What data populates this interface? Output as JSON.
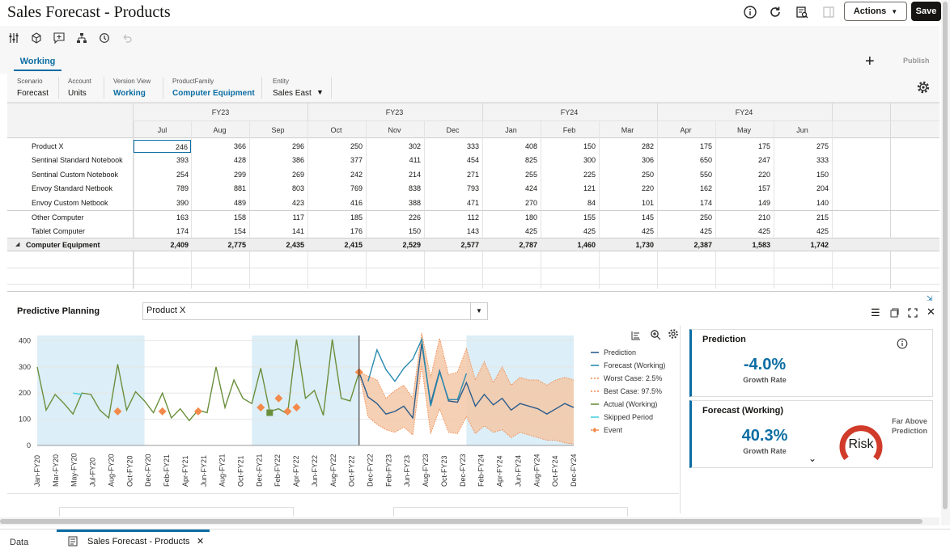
{
  "header": {
    "title": "Sales Forecast - Products",
    "actions_label": "Actions",
    "save_label": "Save"
  },
  "tabs": {
    "working": "Working",
    "publish": "Publish"
  },
  "pov": [
    {
      "label": "Scenario",
      "value": "Forecast"
    },
    {
      "label": "Account",
      "value": "Units"
    },
    {
      "label": "Version View",
      "value": "Working"
    },
    {
      "label": "ProductFamily",
      "value": "Computer Equipment"
    },
    {
      "label": "Entity",
      "value": "Sales East"
    }
  ],
  "grid": {
    "years": [
      "FY23",
      "FY23",
      "FY24",
      "FY24"
    ],
    "months": [
      "Jul",
      "Aug",
      "Sep",
      "Oct",
      "Nov",
      "Dec",
      "Jan",
      "Feb",
      "Mar",
      "Apr",
      "May",
      "Jun"
    ],
    "rows": [
      {
        "label": "Product X",
        "values": [
          "246",
          "366",
          "296",
          "250",
          "302",
          "333",
          "408",
          "150",
          "282",
          "175",
          "175",
          "275"
        ]
      },
      {
        "label": "Sentinal Standard Notebook",
        "values": [
          "393",
          "428",
          "386",
          "377",
          "411",
          "454",
          "825",
          "300",
          "306",
          "650",
          "247",
          "333"
        ]
      },
      {
        "label": "Sentinal Custom Notebook",
        "values": [
          "254",
          "299",
          "269",
          "242",
          "214",
          "271",
          "255",
          "225",
          "250",
          "550",
          "220",
          "150"
        ]
      },
      {
        "label": "Envoy Standard Netbook",
        "values": [
          "789",
          "881",
          "803",
          "769",
          "838",
          "793",
          "424",
          "121",
          "220",
          "162",
          "157",
          "204"
        ]
      },
      {
        "label": "Envoy Custom Netbook",
        "values": [
          "390",
          "489",
          "423",
          "416",
          "388",
          "471",
          "270",
          "84",
          "101",
          "174",
          "149",
          "140"
        ]
      },
      {
        "label": "Other Computer",
        "values": [
          "163",
          "158",
          "117",
          "185",
          "226",
          "112",
          "180",
          "155",
          "145",
          "250",
          "210",
          "215"
        ]
      },
      {
        "label": "Tablet Computer",
        "values": [
          "174",
          "154",
          "141",
          "176",
          "150",
          "143",
          "425",
          "425",
          "425",
          "425",
          "425",
          "425"
        ]
      }
    ],
    "total": {
      "label": "Computer Equipment",
      "values": [
        "2,409",
        "2,775",
        "2,435",
        "2,415",
        "2,529",
        "2,577",
        "2,787",
        "1,460",
        "1,730",
        "2,387",
        "1,583",
        "1,742"
      ]
    }
  },
  "predictive": {
    "title": "Predictive Planning",
    "selected_member": "Product X"
  },
  "chart_data": {
    "type": "line",
    "ylim": [
      0,
      420
    ],
    "yticks": [
      0,
      100,
      200,
      300,
      400
    ],
    "x_labels": [
      "Jan-FY20",
      "Mar-FY20",
      "May-FY20",
      "Jul-FY20",
      "Aug-FY20",
      "Oct-FY20",
      "Dec-FY20",
      "Feb-FY21",
      "Apr-FY21",
      "Jun-FY21",
      "Aug-FY21",
      "Oct-FY21",
      "Dec-FY21",
      "Feb-FY22",
      "Apr-FY22",
      "Jun-FY22",
      "Aug-FY22",
      "Oct-FY22",
      "Dec-FY22",
      "Feb-FY23",
      "Jun-FY23",
      "Aug-FY23",
      "Oct-FY23",
      "Dec-FY23",
      "Feb-FY24",
      "Apr-FY24",
      "Jun-FY24",
      "Aug-FY24",
      "Oct-FY24",
      "Dec-FY24"
    ],
    "actual": [
      300,
      135,
      195,
      160,
      120,
      200,
      195,
      135,
      105,
      310,
      135,
      205,
      170,
      125,
      200,
      105,
      140,
      95,
      135,
      125,
      300,
      145,
      250,
      180,
      160,
      295,
      130,
      140,
      120,
      405,
      180,
      210,
      115,
      405,
      180,
      170,
      280
    ],
    "prediction": [
      null,
      null,
      null,
      null,
      null,
      null,
      null,
      null,
      null,
      null,
      null,
      null,
      null,
      null,
      null,
      null,
      null,
      null,
      null,
      null,
      null,
      null,
      null,
      null,
      null,
      null,
      null,
      null,
      null,
      null,
      null,
      null,
      null,
      null,
      null,
      null,
      280,
      185,
      160,
      120,
      130,
      150,
      105,
      390,
      160,
      285,
      170,
      165,
      240,
      150,
      195,
      155,
      180,
      135,
      160,
      150,
      140,
      120,
      140,
      160,
      145
    ],
    "forecast": [
      null,
      null,
      null,
      null,
      null,
      null,
      null,
      null,
      null,
      null,
      null,
      null,
      null,
      null,
      null,
      null,
      null,
      null,
      null,
      null,
      null,
      null,
      null,
      null,
      null,
      null,
      null,
      null,
      null,
      null,
      null,
      null,
      null,
      null,
      null,
      null,
      null,
      245,
      365,
      290,
      245,
      295,
      330,
      405,
      150,
      280,
      175,
      175,
      275
    ],
    "worst": [
      null,
      null,
      null,
      null,
      null,
      null,
      null,
      null,
      null,
      null,
      null,
      null,
      null,
      null,
      null,
      null,
      null,
      null,
      null,
      null,
      null,
      null,
      null,
      null,
      null,
      null,
      null,
      null,
      null,
      null,
      null,
      null,
      null,
      null,
      null,
      null,
      280,
      110,
      80,
      60,
      50,
      70,
      40,
      305,
      45,
      140,
      50,
      45,
      110,
      45,
      75,
      50,
      60,
      30,
      50,
      40,
      30,
      20,
      20,
      10,
      5
    ],
    "best": [
      null,
      null,
      null,
      null,
      null,
      null,
      null,
      null,
      null,
      null,
      null,
      null,
      null,
      null,
      null,
      null,
      null,
      null,
      null,
      null,
      null,
      null,
      null,
      null,
      null,
      null,
      null,
      null,
      null,
      null,
      null,
      null,
      null,
      null,
      null,
      null,
      280,
      265,
      250,
      180,
      210,
      230,
      180,
      430,
      260,
      410,
      270,
      280,
      370,
      250,
      320,
      240,
      300,
      230,
      260,
      250,
      250,
      230,
      250,
      260,
      250
    ],
    "events": [
      {
        "i": 9,
        "v": 130
      },
      {
        "i": 14,
        "v": 130
      },
      {
        "i": 18,
        "v": 130
      },
      {
        "i": 25,
        "v": 145
      },
      {
        "i": 27,
        "v": 180
      },
      {
        "i": 28,
        "v": 130
      },
      {
        "i": 29,
        "v": 145
      },
      {
        "i": 36,
        "v": 280
      }
    ],
    "skipped": [
      {
        "i": 4,
        "v": 200
      },
      {
        "i": 5,
        "v": 195
      }
    ],
    "square": {
      "i": 26,
      "v": 125
    },
    "legend": [
      "Prediction",
      "Forecast (Working)",
      "Worst Case: 2.5%",
      "Best Case: 97.5%",
      "Actual (Working)",
      "Skipped Period",
      "Event"
    ]
  },
  "cards": {
    "prediction": {
      "title": "Prediction",
      "value": "-4.0%",
      "sub": "Growth Rate"
    },
    "forecast": {
      "title": "Forecast (Working)",
      "value": "40.3%",
      "sub": "Growth Rate",
      "risk": "Risk",
      "note": "Far Above Prediction"
    }
  },
  "bottom_tabs": {
    "data": "Data",
    "doc": "Sales Forecast - Products"
  },
  "colors": {
    "accent": "#0b6da3",
    "prediction": "#2b5d8c",
    "forecast": "#2a8cb0",
    "actual": "#6a8f3c",
    "band": "#f3c8a8",
    "event": "#f28a4b",
    "skipped": "#46d1e0",
    "risk": "#d13b2a",
    "shade": "#dceef7"
  }
}
